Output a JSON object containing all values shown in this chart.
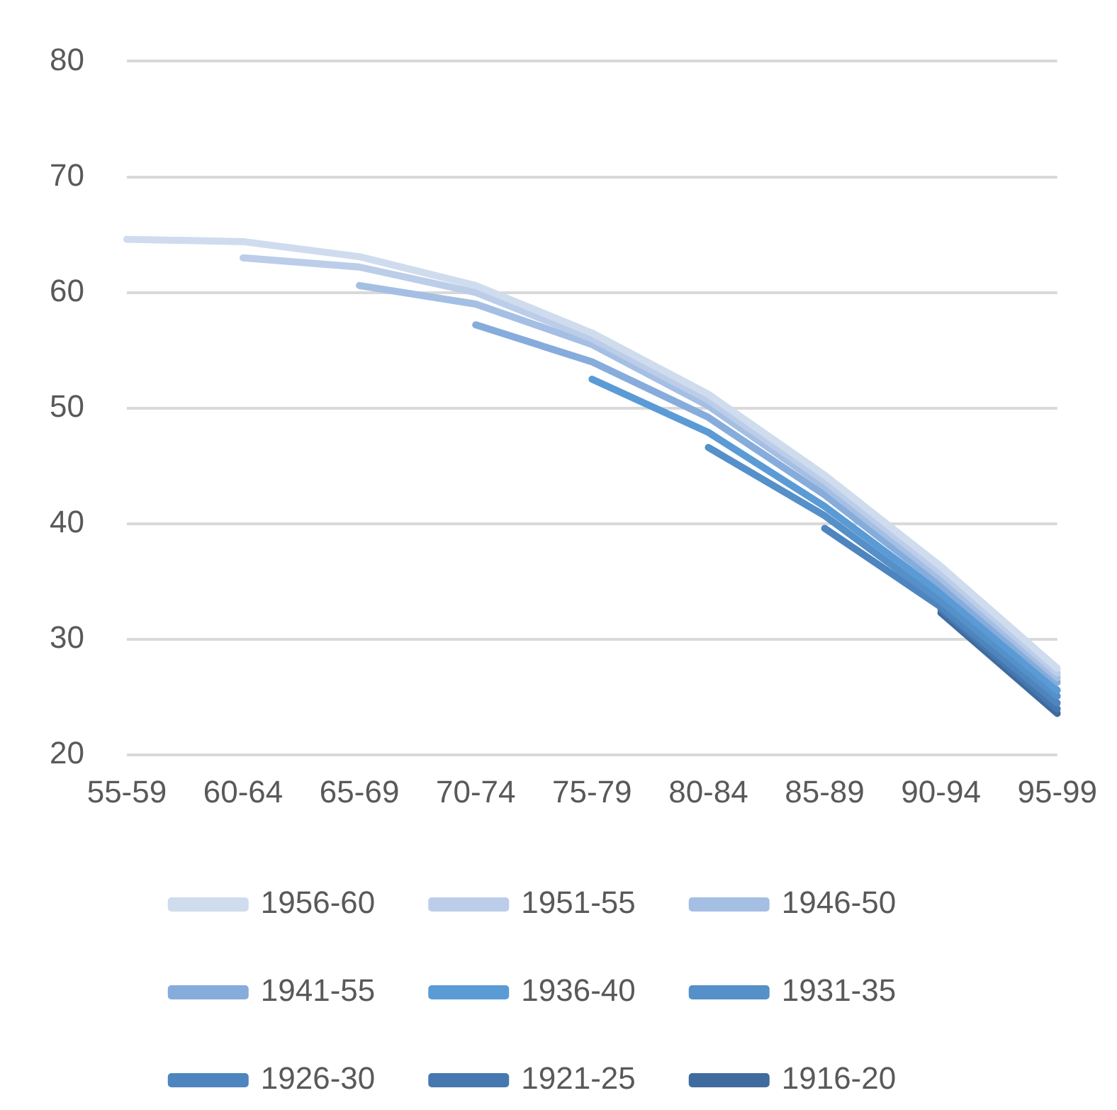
{
  "chart_data": {
    "type": "line",
    "categories": [
      "55-59",
      "60-64",
      "65-69",
      "70-74",
      "75-79",
      "80-84",
      "85-89",
      "90-94",
      "95-99"
    ],
    "series": [
      {
        "name": "1956-60",
        "color": "#cfdcee",
        "values": [
          64.6,
          64.4,
          63.1,
          60.6,
          56.5,
          51.2,
          44.2,
          36.3,
          27.5
        ]
      },
      {
        "name": "1951-55",
        "color": "#bccde9",
        "values": [
          null,
          63.0,
          62.2,
          60.0,
          56.0,
          50.7,
          43.7,
          35.8,
          27.1
        ]
      },
      {
        "name": "1946-50",
        "color": "#a4bfe3",
        "values": [
          null,
          null,
          60.6,
          59.0,
          55.5,
          50.2,
          43.2,
          35.3,
          26.7
        ]
      },
      {
        "name": "1941-55",
        "color": "#86acdc",
        "values": [
          null,
          null,
          null,
          57.2,
          54.0,
          49.2,
          42.5,
          34.7,
          26.3
        ]
      },
      {
        "name": "1936-40",
        "color": "#5b9bd5",
        "values": [
          null,
          null,
          null,
          null,
          52.5,
          47.9,
          41.5,
          34.0,
          25.6
        ]
      },
      {
        "name": "1931-35",
        "color": "#5590c9",
        "values": [
          null,
          null,
          null,
          null,
          null,
          46.6,
          40.7,
          33.3,
          25.1
        ]
      },
      {
        "name": "1926-30",
        "color": "#4e85be",
        "values": [
          null,
          null,
          null,
          null,
          null,
          null,
          39.6,
          32.8,
          24.5
        ]
      },
      {
        "name": "1921-25",
        "color": "#4678b0",
        "values": [
          null,
          null,
          null,
          null,
          null,
          null,
          null,
          32.6,
          24.0
        ]
      },
      {
        "name": "1916-20",
        "color": "#3f6b9e",
        "values": [
          null,
          null,
          null,
          null,
          null,
          null,
          null,
          32.3,
          23.6
        ]
      }
    ],
    "ylim": [
      20,
      80
    ],
    "yticks": [
      20,
      30,
      40,
      50,
      60,
      70,
      80
    ],
    "grid": "y",
    "legend": "bottom",
    "marker": "none",
    "line_style": "solid"
  }
}
